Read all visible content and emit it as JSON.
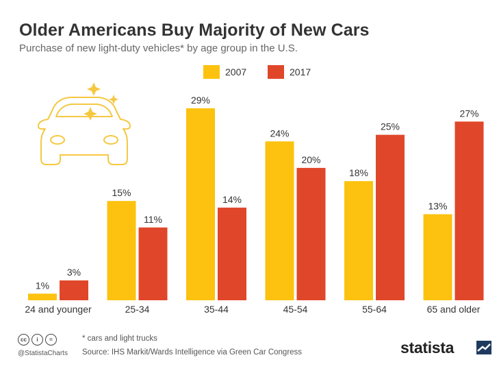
{
  "header": {
    "title": "Older Americans Buy Majority of New Cars",
    "subtitle": "Purchase of new light-duty vehicles* by age group in the U.S."
  },
  "colors": {
    "series_2007": "#FCC20F",
    "series_2017": "#E0472A",
    "car_outline": "#F5C842"
  },
  "chart_data": {
    "type": "bar",
    "categories": [
      "24 and younger",
      "25-34",
      "35-44",
      "45-54",
      "55-64",
      "65 and older"
    ],
    "series": [
      {
        "name": "2007",
        "values": [
          1,
          15,
          29,
          24,
          18,
          13
        ],
        "labels": [
          "1%",
          "15%",
          "29%",
          "24%",
          "18%",
          "13%"
        ]
      },
      {
        "name": "2017",
        "values": [
          3,
          11,
          14,
          20,
          25,
          27
        ],
        "labels": [
          "3%",
          "11%",
          "14%",
          "20%",
          "25%",
          "27%"
        ]
      }
    ],
    "ylim": [
      0,
      29
    ],
    "grid": false,
    "legend": "top",
    "icon": "car-icon"
  },
  "footer": {
    "note": "* cars and light trucks",
    "source": "Source: IHS Markit/Wards Intelligence via Green Car Congress",
    "handle": "@StatistaCharts",
    "license_icons": [
      "cc",
      "i",
      "="
    ],
    "brand": "statista"
  }
}
